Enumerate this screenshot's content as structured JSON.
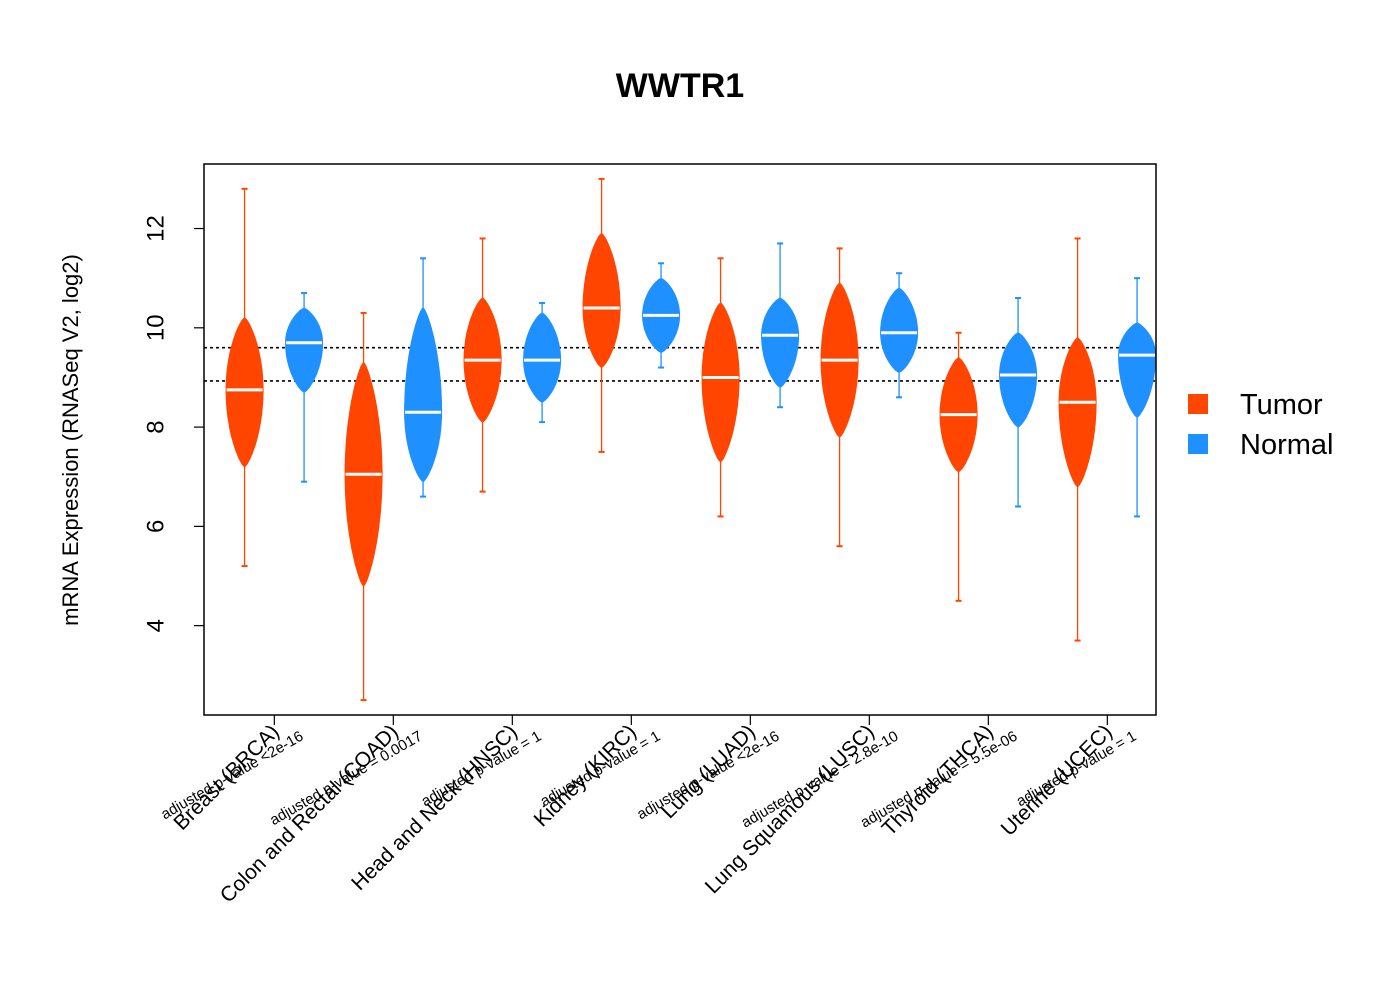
{
  "chart_data": {
    "type": "bean",
    "title": "WWTR1",
    "ylabel": "mRNA Expression (RNASeq V2, log2)",
    "xlabel": "",
    "ylim": [
      2.2,
      13.3
    ],
    "yticks": [
      4,
      6,
      8,
      10,
      12
    ],
    "grid": false,
    "legend_position": "right",
    "reference_lines": [
      9.6,
      8.93
    ],
    "series": [
      {
        "name": "Tumor",
        "color": "#FF4500"
      },
      {
        "name": "Normal",
        "color": "#1E90FF"
      }
    ],
    "groups": [
      {
        "label": "Breast (BRCA)",
        "pvalue": "adjusted p-value <2e-16",
        "tumor": {
          "min": 5.2,
          "max": 12.8,
          "median": 8.75,
          "core_low": 7.2,
          "core_high": 10.2
        },
        "normal": {
          "min": 6.9,
          "max": 10.7,
          "median": 9.7,
          "core_low": 8.7,
          "core_high": 10.4
        }
      },
      {
        "label": "Colon and Rectal (COAD)",
        "pvalue": "adjusted p-value = 0.0017",
        "tumor": {
          "min": 2.5,
          "max": 10.3,
          "median": 7.05,
          "core_low": 4.8,
          "core_high": 9.3
        },
        "normal": {
          "min": 6.6,
          "max": 11.4,
          "median": 8.3,
          "core_low": 6.9,
          "core_high": 10.4
        }
      },
      {
        "label": "Head and Neck (HNSC)",
        "pvalue": "adjusted p-value = 1",
        "tumor": {
          "min": 6.7,
          "max": 11.8,
          "median": 9.35,
          "core_low": 8.1,
          "core_high": 10.6
        },
        "normal": {
          "min": 8.1,
          "max": 10.5,
          "median": 9.35,
          "core_low": 8.5,
          "core_high": 10.3
        }
      },
      {
        "label": "Kidney (KIRC)",
        "pvalue": "adjusted p-value = 1",
        "tumor": {
          "min": 7.5,
          "max": 13.0,
          "median": 10.4,
          "core_low": 9.2,
          "core_high": 11.9
        },
        "normal": {
          "min": 9.2,
          "max": 11.3,
          "median": 10.25,
          "core_low": 9.5,
          "core_high": 11.0
        }
      },
      {
        "label": "Lung (LUAD)",
        "pvalue": "adjusted p-value <2e-16",
        "tumor": {
          "min": 6.2,
          "max": 11.4,
          "median": 9.0,
          "core_low": 7.3,
          "core_high": 10.5
        },
        "normal": {
          "min": 8.4,
          "max": 11.7,
          "median": 9.85,
          "core_low": 8.8,
          "core_high": 10.6
        }
      },
      {
        "label": "Lung Squamous (LUSC)",
        "pvalue": "adjusted p-value = 2.8e-10",
        "tumor": {
          "min": 5.6,
          "max": 11.6,
          "median": 9.35,
          "core_low": 7.8,
          "core_high": 10.9
        },
        "normal": {
          "min": 8.6,
          "max": 11.1,
          "median": 9.9,
          "core_low": 9.1,
          "core_high": 10.8
        }
      },
      {
        "label": "Thyroid (THCA)",
        "pvalue": "adjusted p-value = 5.5e-06",
        "tumor": {
          "min": 4.5,
          "max": 9.9,
          "median": 8.25,
          "core_low": 7.1,
          "core_high": 9.4
        },
        "normal": {
          "min": 6.4,
          "max": 10.6,
          "median": 9.05,
          "core_low": 8.0,
          "core_high": 9.9
        }
      },
      {
        "label": "Uterine (UCEC)",
        "pvalue": "adjusted p-value = 1",
        "tumor": {
          "min": 3.7,
          "max": 11.8,
          "median": 8.5,
          "core_low": 6.8,
          "core_high": 9.8
        },
        "normal": {
          "min": 6.2,
          "max": 11.0,
          "median": 9.45,
          "core_low": 8.2,
          "core_high": 10.1
        }
      }
    ]
  }
}
